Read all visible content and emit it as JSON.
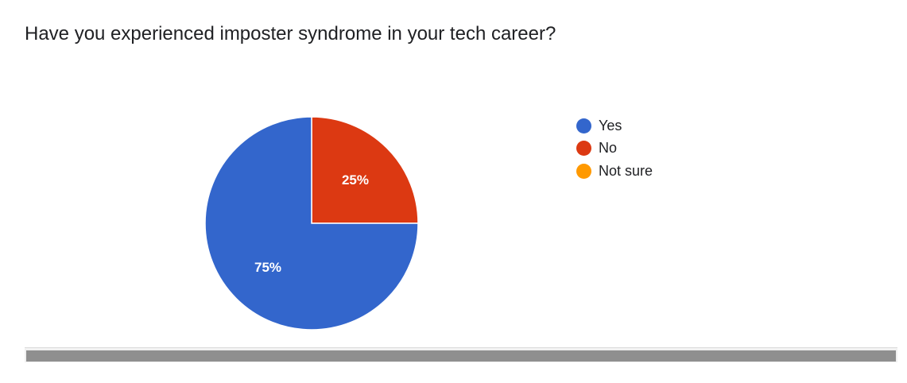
{
  "chart_data": {
    "type": "pie",
    "title": "Have you experienced imposter syndrome in your tech career?",
    "categories": [
      "Yes",
      "No",
      "Not sure"
    ],
    "values": [
      75,
      25,
      0
    ],
    "value_labels": [
      "75%",
      "25%",
      ""
    ],
    "colors": [
      "#3366cc",
      "#dc3912",
      "#ff9900"
    ],
    "legend_position": "right"
  }
}
